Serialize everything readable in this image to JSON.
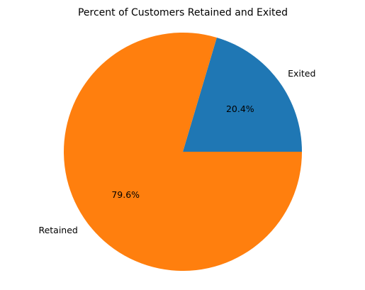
{
  "chart_data": {
    "type": "pie",
    "title": "Percent of Customers Retained and Exited",
    "slices": [
      {
        "label": "Exited",
        "value": 20.4,
        "pct_label": "20.4%",
        "color": "#1f77b4"
      },
      {
        "label": "Retained",
        "value": 79.6,
        "pct_label": "79.6%",
        "color": "#ff7f0e"
      }
    ],
    "start_angle_deg": 0,
    "direction": "counterclockwise",
    "legend": "none"
  }
}
